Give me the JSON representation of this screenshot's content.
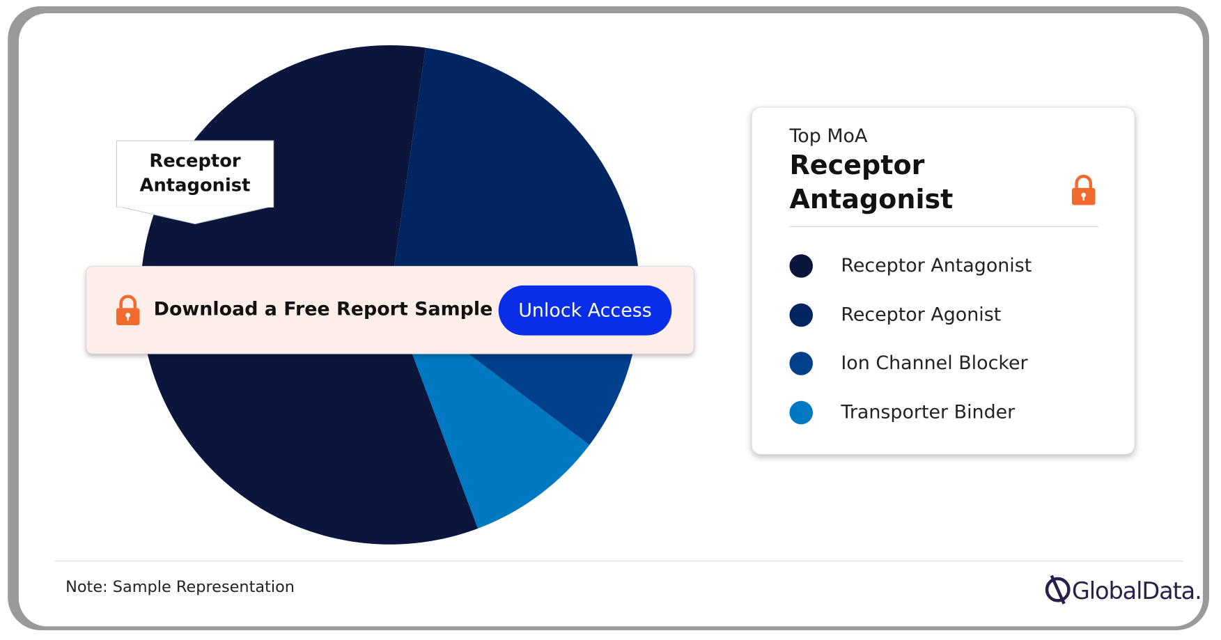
{
  "chart_data": {
    "type": "pie",
    "categories": [
      "Receptor Antagonist",
      "Receptor Agonist",
      "Ion Channel Blocker",
      "Transporter Binder"
    ],
    "values": [
      58,
      25,
      8,
      9
    ],
    "colors": [
      "#0c163d",
      "#002561",
      "#003f8a",
      "#0079c2"
    ],
    "callout": "Receptor Antagonist"
  },
  "panel": {
    "heading": "Top MoA",
    "value": "Receptor Antagonist"
  },
  "banner": {
    "text": "Download a Free Report Sample",
    "button": "Unlock Access"
  },
  "footer": {
    "note": "Note: Sample Representation",
    "brand": "GlobalData."
  }
}
